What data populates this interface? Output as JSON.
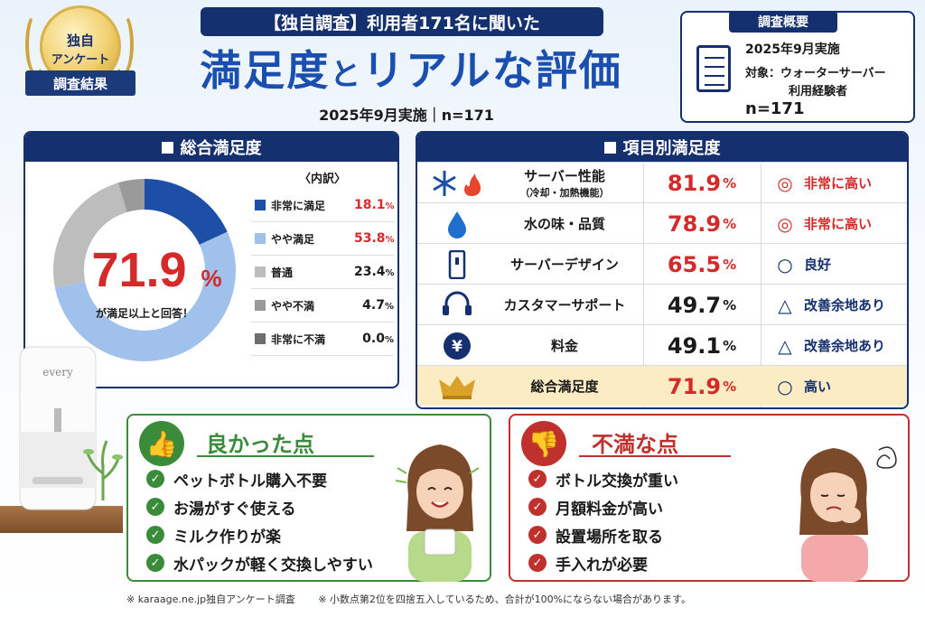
{
  "badge": {
    "line1": "独自",
    "line2": "アンケート",
    "ribbon": "調査結果"
  },
  "header": {
    "topline": "【独自調査】利用者171名に聞いた",
    "title_part1": "満足度",
    "title_part2": "と",
    "title_part3": "リアルな評価",
    "subline": "2025年9月実施｜n=171"
  },
  "overview": {
    "heading": "調査概要",
    "date": "2025年9月実施",
    "target_line1": "対象：ウォーターサーバー",
    "target_line2": "利用経験者",
    "n": "n=171",
    "icon": "clipboard-icon"
  },
  "overall_panel": {
    "heading": "総合満足度",
    "big_value": "71.9",
    "big_unit": "%",
    "caption": "が満足以上と回答！",
    "breakdown_heading": "〈内訳〉"
  },
  "category_panel": {
    "heading": "項目別満足度"
  },
  "categories": [
    {
      "name": "サーバー性能",
      "sub": "（冷却・加熱機能）",
      "value": "81.9",
      "eval_symbol": "◎",
      "eval": "非常に高い",
      "icon": "snowflake-flame-icon"
    },
    {
      "name": "水の味・品質",
      "sub": "",
      "value": "78.9",
      "eval_symbol": "◎",
      "eval": "非常に高い",
      "icon": "water-drop-icon"
    },
    {
      "name": "サーバーデザイン",
      "sub": "",
      "value": "65.5",
      "eval_symbol": "○",
      "eval": "良好",
      "icon": "server-design-icon"
    },
    {
      "name": "カスタマーサポート",
      "sub": "",
      "value": "49.7",
      "eval_symbol": "△",
      "eval": "改善余地あり",
      "icon": "headset-icon"
    },
    {
      "name": "料金",
      "sub": "",
      "value": "49.1",
      "eval_symbol": "△",
      "eval": "改善余地あり",
      "icon": "yen-icon"
    },
    {
      "name": "総合満足度",
      "sub": "",
      "value": "71.9",
      "eval_symbol": "○",
      "eval": "高い",
      "icon": "crown-icon"
    }
  ],
  "percent_sign": "%",
  "good": {
    "title": "良かった点",
    "items": [
      "ペットボトル購入不要",
      "お湯がすぐ使える",
      "ミルク作りが楽",
      "水パックが軽く交換しやすい"
    ]
  },
  "bad": {
    "title": "不満な点",
    "items": [
      "ボトル交換が重い",
      "月額料金が高い",
      "設置場所を取る",
      "手入れが必要"
    ]
  },
  "server_label": "every",
  "footer": {
    "source": "※ karaage.ne.jp独自アンケート調査",
    "note": "※ 小数点第2位を四捨五入しているため、合計が100%にならない場合があります。"
  },
  "colors": {
    "navy": "#14306e",
    "red": "#d42a2a",
    "green": "#3a8b3a",
    "very_satisfied": "#1d4fa6",
    "satisfied": "#9fc1ec",
    "neutral": "#bdbdbd",
    "somewhat_dissatisfied": "#9a9a9a",
    "very_dissatisfied": "#6e6e6e"
  },
  "chart_data": {
    "type": "pie",
    "title": "総合満足度",
    "categories": [
      "非常に満足",
      "やや満足",
      "普通",
      "やや不満",
      "非常に不満"
    ],
    "values": [
      18.1,
      53.8,
      23.4,
      4.7,
      0.0
    ],
    "colors": [
      "#1d4fa6",
      "#9fc1ec",
      "#bdbdbd",
      "#9a9a9a",
      "#6e6e6e"
    ],
    "legend": "right"
  }
}
